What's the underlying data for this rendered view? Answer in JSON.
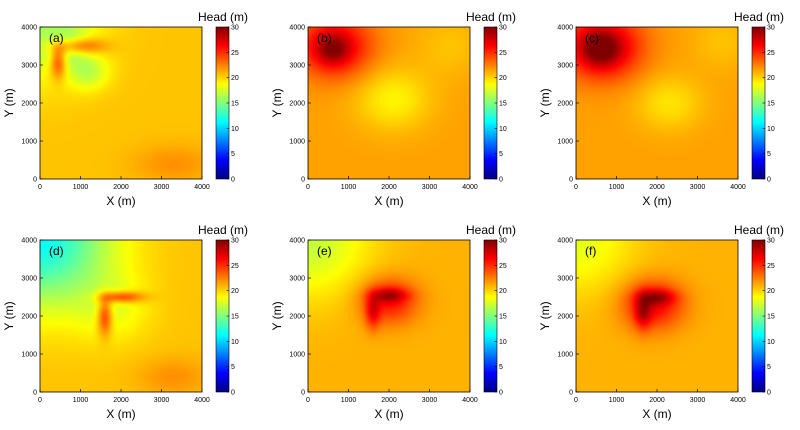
{
  "chart_data": [
    {
      "type": "heatmap",
      "panel_label": "(a)",
      "colorbar_title": "Head (m)",
      "xlabel": "X (m)",
      "ylabel": "Y (m)",
      "xlim": [
        0,
        4000
      ],
      "ylim": [
        0,
        4000
      ],
      "x_ticks": [
        0,
        1000,
        2000,
        3000,
        4000
      ],
      "y_ticks": [
        0,
        1000,
        2000,
        3000,
        4000
      ],
      "clim": [
        0,
        30
      ],
      "colorbar_ticks": [
        0,
        5,
        10,
        15,
        20,
        25,
        30
      ],
      "field": {
        "base": 20.5,
        "bumps": [
          {
            "x": 0,
            "y": 4000,
            "sx": 1400,
            "sy": 1400,
            "a": -4
          },
          {
            "x": 700,
            "y": 3500,
            "sx": 500,
            "sy": 450,
            "a": -3
          },
          {
            "x": 1200,
            "y": 2800,
            "sx": 500,
            "sy": 450,
            "a": -3
          },
          {
            "x": 900,
            "y": 3500,
            "sx": 650,
            "sy": 220,
            "a": 6
          },
          {
            "x": 450,
            "y": 3100,
            "sx": 200,
            "sy": 450,
            "a": 6
          },
          {
            "x": 3300,
            "y": 400,
            "sx": 1000,
            "sy": 500,
            "a": 1.5
          }
        ]
      }
    },
    {
      "type": "heatmap",
      "panel_label": "(b)",
      "colorbar_title": "Head (m)",
      "xlabel": "X (m)",
      "ylabel": "Y (m)",
      "xlim": [
        0,
        4000
      ],
      "ylim": [
        0,
        4000
      ],
      "x_ticks": [
        0,
        1000,
        2000,
        3000,
        4000
      ],
      "y_ticks": [
        0,
        1000,
        2000,
        3000,
        4000
      ],
      "clim": [
        0,
        30
      ],
      "colorbar_ticks": [
        0,
        5,
        10,
        15,
        20,
        25,
        30
      ],
      "field": {
        "base": 21.5,
        "bumps": [
          {
            "x": 650,
            "y": 3500,
            "sx": 900,
            "sy": 800,
            "a": 6
          },
          {
            "x": 600,
            "y": 3400,
            "sx": 400,
            "sy": 380,
            "a": 3
          },
          {
            "x": 2100,
            "y": 2100,
            "sx": 900,
            "sy": 800,
            "a": -2.5
          },
          {
            "x": 3500,
            "y": 3500,
            "sx": 800,
            "sy": 800,
            "a": -1
          }
        ]
      }
    },
    {
      "type": "heatmap",
      "panel_label": "(c)",
      "colorbar_title": "Head (m)",
      "xlabel": "X (m)",
      "ylabel": "Y (m)",
      "xlim": [
        0,
        4000
      ],
      "ylim": [
        0,
        4000
      ],
      "x_ticks": [
        0,
        1000,
        2000,
        3000,
        4000
      ],
      "y_ticks": [
        0,
        1000,
        2000,
        3000,
        4000
      ],
      "clim": [
        0,
        30
      ],
      "colorbar_ticks": [
        0,
        5,
        10,
        15,
        20,
        25,
        30
      ],
      "field": {
        "base": 21.5,
        "bumps": [
          {
            "x": 650,
            "y": 3500,
            "sx": 950,
            "sy": 850,
            "a": 7
          },
          {
            "x": 600,
            "y": 3400,
            "sx": 450,
            "sy": 420,
            "a": 3.5
          },
          {
            "x": 2300,
            "y": 2000,
            "sx": 800,
            "sy": 700,
            "a": -2
          },
          {
            "x": 3600,
            "y": 3600,
            "sx": 700,
            "sy": 700,
            "a": -1
          }
        ]
      }
    },
    {
      "type": "heatmap",
      "panel_label": "(d)",
      "colorbar_title": "Head (m)",
      "xlabel": "X (m)",
      "ylabel": "Y (m)",
      "xlim": [
        0,
        4000
      ],
      "ylim": [
        0,
        4000
      ],
      "x_ticks": [
        0,
        1000,
        2000,
        3000,
        4000
      ],
      "y_ticks": [
        0,
        1000,
        2000,
        3000,
        4000
      ],
      "clim": [
        0,
        30
      ],
      "colorbar_ticks": [
        0,
        5,
        10,
        15,
        20,
        25,
        30
      ],
      "field": {
        "base": 20.5,
        "bumps": [
          {
            "x": 0,
            "y": 4000,
            "sx": 1700,
            "sy": 1700,
            "a": -9
          },
          {
            "x": 1800,
            "y": 2200,
            "sx": 900,
            "sy": 900,
            "a": -2
          },
          {
            "x": 2000,
            "y": 2500,
            "sx": 550,
            "sy": 150,
            "a": 6
          },
          {
            "x": 1600,
            "y": 2000,
            "sx": 180,
            "sy": 500,
            "a": 6
          },
          {
            "x": 3300,
            "y": 400,
            "sx": 900,
            "sy": 500,
            "a": 1.5
          }
        ]
      }
    },
    {
      "type": "heatmap",
      "panel_label": "(e)",
      "colorbar_title": "Head (m)",
      "xlabel": "X (m)",
      "ylabel": "Y (m)",
      "xlim": [
        0,
        4000
      ],
      "ylim": [
        0,
        4000
      ],
      "x_ticks": [
        0,
        1000,
        2000,
        3000,
        4000
      ],
      "y_ticks": [
        0,
        1000,
        2000,
        3000,
        4000
      ],
      "clim": [
        0,
        30
      ],
      "colorbar_ticks": [
        0,
        5,
        10,
        15,
        20,
        25,
        30
      ],
      "field": {
        "base": 21,
        "bumps": [
          {
            "x": 0,
            "y": 4000,
            "sx": 1500,
            "sy": 1500,
            "a": -4
          },
          {
            "x": 2000,
            "y": 2400,
            "sx": 700,
            "sy": 600,
            "a": 5
          },
          {
            "x": 2000,
            "y": 2550,
            "sx": 450,
            "sy": 180,
            "a": 4
          },
          {
            "x": 1600,
            "y": 2100,
            "sx": 180,
            "sy": 450,
            "a": 4
          }
        ]
      }
    },
    {
      "type": "heatmap",
      "panel_label": "(f)",
      "colorbar_title": "Head (m)",
      "xlabel": "X (m)",
      "ylabel": "Y (m)",
      "xlim": [
        0,
        4000
      ],
      "ylim": [
        0,
        4000
      ],
      "x_ticks": [
        0,
        1000,
        2000,
        3000,
        4000
      ],
      "y_ticks": [
        0,
        1000,
        2000,
        3000,
        4000
      ],
      "clim": [
        0,
        30
      ],
      "colorbar_ticks": [
        0,
        5,
        10,
        15,
        20,
        25,
        30
      ],
      "field": {
        "base": 21,
        "bumps": [
          {
            "x": 0,
            "y": 4000,
            "sx": 1400,
            "sy": 1400,
            "a": -3
          },
          {
            "x": 1900,
            "y": 2300,
            "sx": 750,
            "sy": 650,
            "a": 5.5
          },
          {
            "x": 2000,
            "y": 2500,
            "sx": 450,
            "sy": 200,
            "a": 4
          },
          {
            "x": 1650,
            "y": 2100,
            "sx": 200,
            "sy": 450,
            "a": 4
          }
        ]
      }
    }
  ]
}
